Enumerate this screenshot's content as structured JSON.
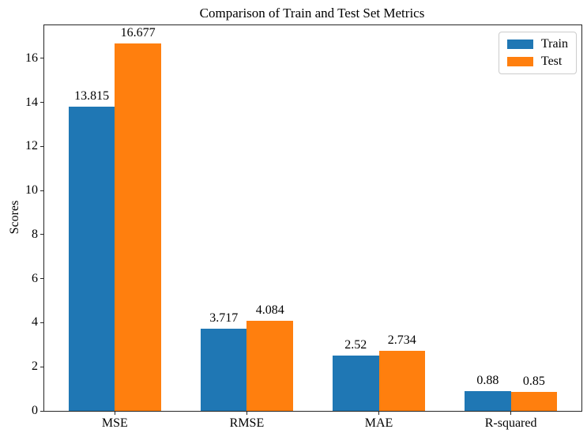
{
  "chart_data": {
    "type": "bar",
    "title": "Comparison of Train and Test Set Metrics",
    "xlabel": "",
    "ylabel": "Scores",
    "categories": [
      "MSE",
      "RMSE",
      "MAE",
      "R-squared"
    ],
    "series": [
      {
        "name": "Train",
        "color": "#1f77b4",
        "values": [
          13.815,
          3.717,
          2.52,
          0.88
        ]
      },
      {
        "name": "Test",
        "color": "#ff7f0e",
        "values": [
          16.677,
          4.084,
          2.734,
          0.85
        ]
      }
    ],
    "bar_value_labels": [
      "13.815",
      "16.677",
      "3.717",
      "4.084",
      "2.52",
      "2.734",
      "0.88",
      "0.85"
    ],
    "ylim": [
      0,
      17.5
    ],
    "xlim": [
      -0.535,
      3.535
    ],
    "yticks": [
      0,
      2,
      4,
      6,
      8,
      10,
      12,
      14,
      16
    ],
    "bar_width": 0.35,
    "grid": false,
    "legend_position": "upper right",
    "colors": {
      "axis": "#262626",
      "background": "#ffffff",
      "legend_border": "#cccccc",
      "text": "#000000"
    }
  }
}
